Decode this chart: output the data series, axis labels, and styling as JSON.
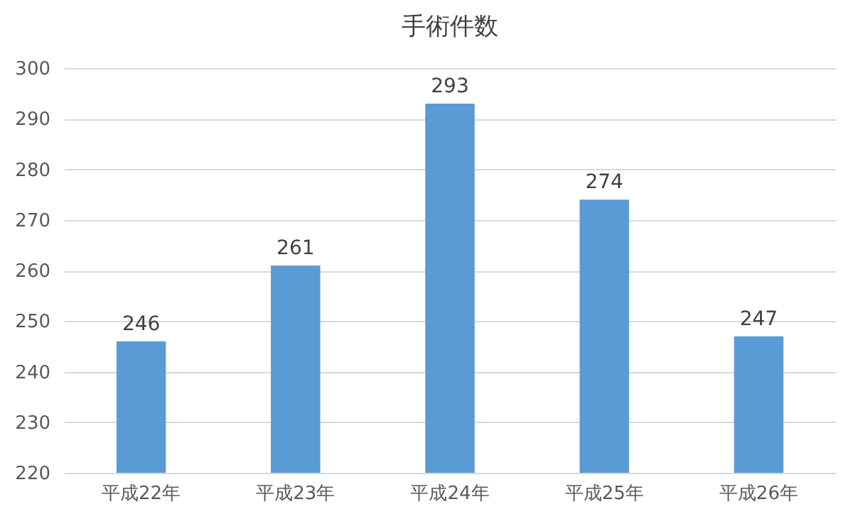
{
  "chart_data": {
    "type": "bar",
    "title": "手術件数",
    "categories": [
      "平成22年",
      "平成23年",
      "平成24年",
      "平成25年",
      "平成26年"
    ],
    "values": [
      246,
      261,
      293,
      274,
      247
    ],
    "color": "#5b9bd5",
    "ylim": [
      220,
      300
    ],
    "yticks": [
      220,
      230,
      240,
      250,
      260,
      270,
      280,
      290,
      300
    ],
    "grid": true,
    "data_labels": true
  }
}
